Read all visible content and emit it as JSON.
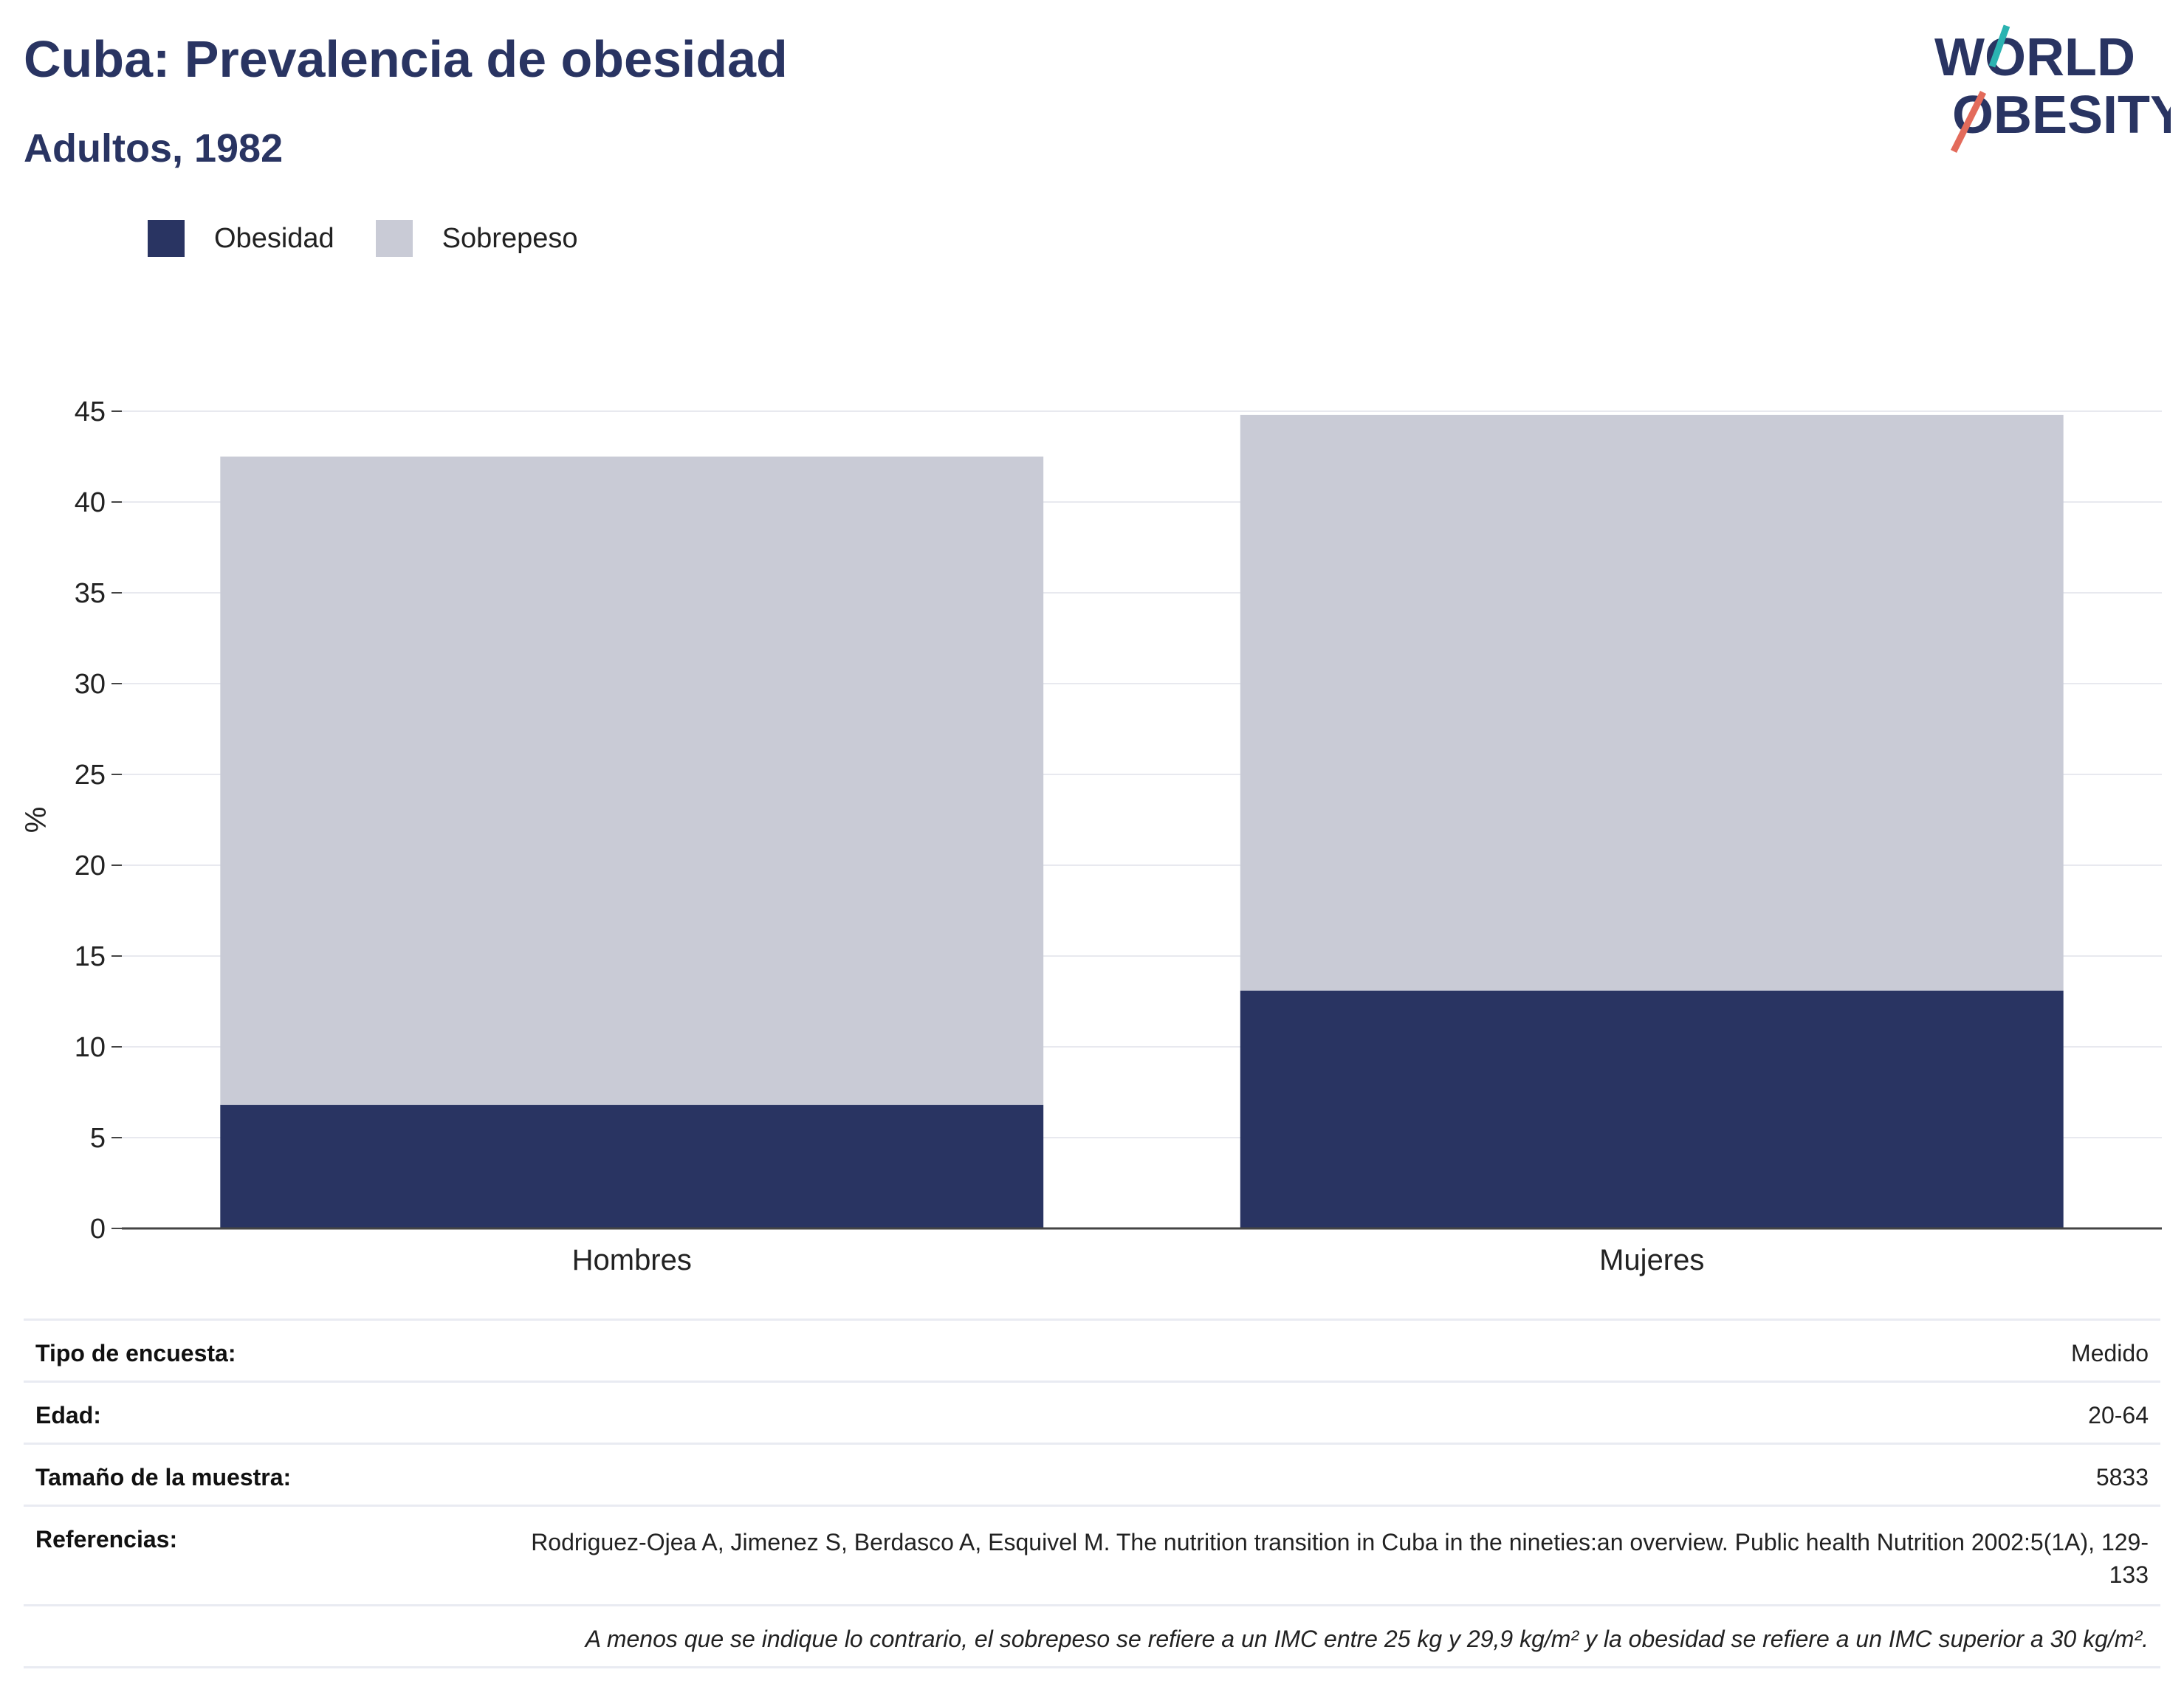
{
  "header": {
    "title": "Cuba: Prevalencia de obesidad",
    "subtitle": "Adultos, 1982"
  },
  "logo": {
    "line1": "WORLD",
    "line2": "OBESITY",
    "colors": {
      "text": "#293462",
      "slash_top": "#2bb3b1",
      "slash_bottom": "#e36b5b"
    }
  },
  "chart_data": {
    "type": "bar",
    "stacked": true,
    "categories": [
      "Hombres",
      "Mujeres"
    ],
    "series": [
      {
        "name": "Obesidad",
        "color": "#293462",
        "values": [
          6.8,
          13.1
        ]
      },
      {
        "name": "Sobrepeso",
        "color": "#c9cbd6",
        "values": [
          35.7,
          31.7
        ]
      }
    ],
    "ylabel": "%",
    "xlabel": "",
    "ylim": [
      0,
      45
    ],
    "yticks": [
      0,
      5,
      10,
      15,
      20,
      25,
      30,
      35,
      40,
      45
    ],
    "grid": true,
    "legend_position": "top-left"
  },
  "info_table": {
    "rows": [
      {
        "label": "Tipo de encuesta:",
        "value": "Medido"
      },
      {
        "label": "Edad:",
        "value": "20-64"
      },
      {
        "label": "Tamaño de la muestra:",
        "value": "5833"
      },
      {
        "label": "Referencias:",
        "value": "Rodriguez-Ojea A, Jimenez S, Berdasco A, Esquivel M. The nutrition transition in Cuba in the nineties:an overview. Public health Nutrition 2002:5(1A), 129-133"
      }
    ],
    "note": "A menos que se indique lo contrario, el sobrepeso se refiere a un IMC entre 25 kg y 29,9 kg/m² y la obesidad se refiere a un IMC superior a 30 kg/m²."
  }
}
